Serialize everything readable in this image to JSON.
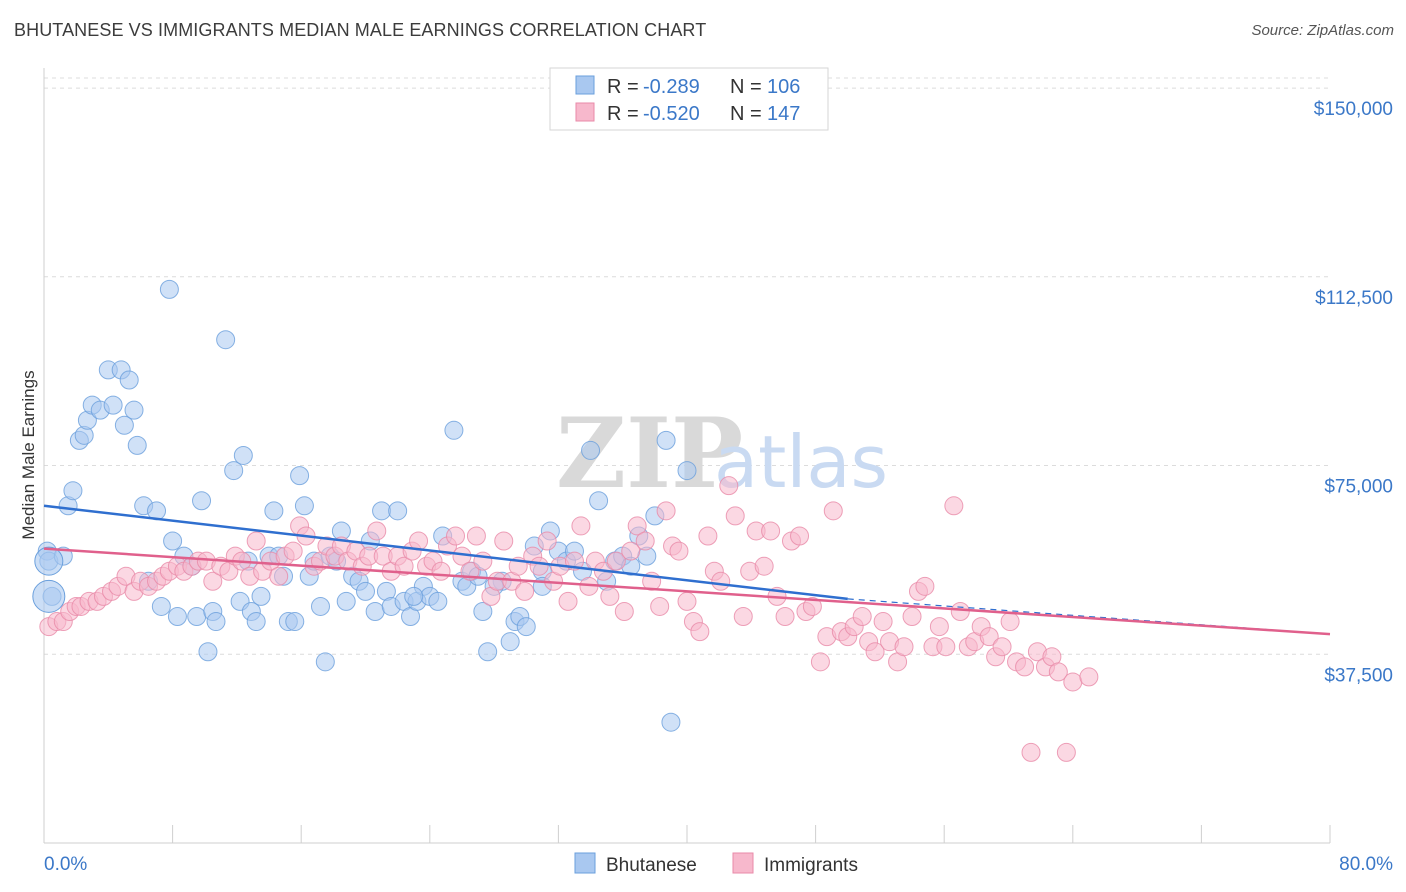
{
  "title": "BHUTANESE VS IMMIGRANTS MEDIAN MALE EARNINGS CORRELATION CHART",
  "source": "Source: ZipAtlas.com",
  "watermark": {
    "zip": "ZIP",
    "atlas": "atlas"
  },
  "legend": {
    "r_label": "R =",
    "n_label": "N =",
    "entries": [
      {
        "r": "-0.289",
        "n": "106",
        "color": "#a9c8f0",
        "stroke": "#6a9fdc"
      },
      {
        "r": "-0.520",
        "n": "147",
        "color": "#f7b8cc",
        "stroke": "#e88aa8"
      }
    ]
  },
  "bottom_legend": [
    {
      "label": "Bhutanese",
      "color": "#a9c8f0",
      "stroke": "#6a9fdc"
    },
    {
      "label": "Immigrants",
      "color": "#f7b8cc",
      "stroke": "#e88aa8"
    }
  ],
  "chart_data": {
    "type": "scatter",
    "title": "BHUTANESE VS IMMIGRANTS MEDIAN MALE EARNINGS CORRELATION CHART",
    "xlabel": "",
    "ylabel": "Median Male Earnings",
    "xlim": [
      0,
      80
    ],
    "ylim": [
      0,
      152000
    ],
    "x_tick_labels": [
      "0.0%",
      "80.0%"
    ],
    "y_ticks": [
      37500,
      75000,
      112500,
      150000
    ],
    "y_tick_labels": [
      "$37,500",
      "$75,000",
      "$112,500",
      "$150,000"
    ],
    "grid": true,
    "legend_position": "top-center",
    "series": [
      {
        "name": "Bhutanese",
        "color": "#6a9fdc",
        "fill": "#a9c8f0",
        "trend": {
          "x": [
            0,
            50
          ],
          "y": [
            67000,
            48500
          ],
          "dashed_to": [
            80,
            41500
          ]
        },
        "points": [
          [
            0.2,
            58000
          ],
          [
            0.3,
            56000
          ],
          [
            0.5,
            49000
          ],
          [
            1.2,
            57000
          ],
          [
            1.5,
            67000
          ],
          [
            1.8,
            70000
          ],
          [
            2.2,
            80000
          ],
          [
            2.5,
            81000
          ],
          [
            2.7,
            84000
          ],
          [
            3.0,
            87000
          ],
          [
            3.5,
            86000
          ],
          [
            4.0,
            94000
          ],
          [
            4.3,
            87000
          ],
          [
            4.8,
            94000
          ],
          [
            5.0,
            83000
          ],
          [
            5.3,
            92000
          ],
          [
            5.6,
            86000
          ],
          [
            5.8,
            79000
          ],
          [
            6.2,
            67000
          ],
          [
            6.5,
            52000
          ],
          [
            7.0,
            66000
          ],
          [
            7.3,
            47000
          ],
          [
            7.8,
            110000
          ],
          [
            8.0,
            60000
          ],
          [
            8.3,
            45000
          ],
          [
            8.7,
            57000
          ],
          [
            9.2,
            55000
          ],
          [
            9.5,
            45000
          ],
          [
            9.8,
            68000
          ],
          [
            10.2,
            38000
          ],
          [
            10.5,
            46000
          ],
          [
            10.7,
            44000
          ],
          [
            11.3,
            100000
          ],
          [
            11.8,
            74000
          ],
          [
            12.2,
            48000
          ],
          [
            12.4,
            77000
          ],
          [
            12.7,
            56000
          ],
          [
            12.9,
            46000
          ],
          [
            13.2,
            44000
          ],
          [
            13.5,
            49000
          ],
          [
            14.0,
            57000
          ],
          [
            14.3,
            66000
          ],
          [
            14.6,
            57000
          ],
          [
            14.9,
            53000
          ],
          [
            15.2,
            44000
          ],
          [
            15.6,
            44000
          ],
          [
            15.9,
            73000
          ],
          [
            16.2,
            67000
          ],
          [
            16.5,
            53000
          ],
          [
            16.8,
            56000
          ],
          [
            17.2,
            47000
          ],
          [
            17.5,
            36000
          ],
          [
            17.8,
            57000
          ],
          [
            18.2,
            56000
          ],
          [
            18.5,
            62000
          ],
          [
            18.8,
            48000
          ],
          [
            19.2,
            53000
          ],
          [
            19.6,
            52000
          ],
          [
            20.0,
            50000
          ],
          [
            20.3,
            60000
          ],
          [
            20.6,
            46000
          ],
          [
            21.0,
            66000
          ],
          [
            21.3,
            50000
          ],
          [
            21.6,
            47000
          ],
          [
            22.0,
            66000
          ],
          [
            22.4,
            48000
          ],
          [
            22.8,
            45000
          ],
          [
            23.2,
            48000
          ],
          [
            23.6,
            51000
          ],
          [
            24.0,
            49000
          ],
          [
            24.5,
            48000
          ],
          [
            24.8,
            61000
          ],
          [
            25.5,
            82000
          ],
          [
            26.0,
            52000
          ],
          [
            26.3,
            51000
          ],
          [
            26.6,
            54000
          ],
          [
            27.0,
            53000
          ],
          [
            27.3,
            46000
          ],
          [
            27.6,
            38000
          ],
          [
            28.5,
            52000
          ],
          [
            29.0,
            40000
          ],
          [
            29.3,
            44000
          ],
          [
            29.6,
            45000
          ],
          [
            30.0,
            43000
          ],
          [
            30.5,
            59000
          ],
          [
            31.0,
            54000
          ],
          [
            31.5,
            62000
          ],
          [
            32.0,
            58000
          ],
          [
            32.5,
            56000
          ],
          [
            33.0,
            58000
          ],
          [
            33.5,
            54000
          ],
          [
            34.0,
            78000
          ],
          [
            34.5,
            68000
          ],
          [
            35.0,
            52000
          ],
          [
            35.5,
            56000
          ],
          [
            36.0,
            57000
          ],
          [
            36.5,
            55000
          ],
          [
            37.0,
            61000
          ],
          [
            38.0,
            65000
          ],
          [
            38.7,
            80000
          ],
          [
            39.0,
            24000
          ],
          [
            40.0,
            74000
          ],
          [
            31.0,
            51000
          ],
          [
            37.5,
            57000
          ],
          [
            28.0,
            51000
          ],
          [
            23.0,
            49000
          ]
        ]
      },
      {
        "name": "Immigrants",
        "color": "#e88aa8",
        "fill": "#f7b8cc",
        "trend": {
          "x": [
            0,
            80
          ],
          "y": [
            58500,
            41500
          ]
        },
        "points": [
          [
            0.3,
            43000
          ],
          [
            0.8,
            44000
          ],
          [
            1.2,
            44000
          ],
          [
            1.6,
            46000
          ],
          [
            2.0,
            47000
          ],
          [
            2.3,
            47000
          ],
          [
            2.8,
            48000
          ],
          [
            3.3,
            48000
          ],
          [
            3.7,
            49000
          ],
          [
            4.2,
            50000
          ],
          [
            4.6,
            51000
          ],
          [
            5.1,
            53000
          ],
          [
            5.6,
            50000
          ],
          [
            6.0,
            52000
          ],
          [
            6.5,
            51000
          ],
          [
            7.0,
            52000
          ],
          [
            7.4,
            53000
          ],
          [
            7.8,
            54000
          ],
          [
            8.3,
            55000
          ],
          [
            8.7,
            54000
          ],
          [
            9.2,
            55000
          ],
          [
            9.6,
            56000
          ],
          [
            10.1,
            56000
          ],
          [
            10.5,
            52000
          ],
          [
            11.0,
            55000
          ],
          [
            11.5,
            54000
          ],
          [
            11.9,
            57000
          ],
          [
            12.3,
            56000
          ],
          [
            12.8,
            53000
          ],
          [
            13.2,
            60000
          ],
          [
            13.6,
            54000
          ],
          [
            14.1,
            56000
          ],
          [
            14.6,
            53000
          ],
          [
            15.0,
            57000
          ],
          [
            15.5,
            58000
          ],
          [
            15.9,
            63000
          ],
          [
            16.3,
            61000
          ],
          [
            16.8,
            55000
          ],
          [
            17.2,
            56000
          ],
          [
            17.6,
            59000
          ],
          [
            18.1,
            57000
          ],
          [
            18.5,
            59000
          ],
          [
            18.9,
            56000
          ],
          [
            19.4,
            58000
          ],
          [
            19.8,
            55000
          ],
          [
            20.2,
            57000
          ],
          [
            20.7,
            62000
          ],
          [
            21.1,
            57000
          ],
          [
            21.6,
            54000
          ],
          [
            22.0,
            57000
          ],
          [
            22.4,
            55000
          ],
          [
            22.9,
            58000
          ],
          [
            23.3,
            60000
          ],
          [
            23.8,
            55000
          ],
          [
            24.2,
            56000
          ],
          [
            24.7,
            54000
          ],
          [
            25.1,
            59000
          ],
          [
            25.6,
            61000
          ],
          [
            26.0,
            57000
          ],
          [
            26.5,
            54000
          ],
          [
            26.9,
            61000
          ],
          [
            27.3,
            56000
          ],
          [
            27.8,
            49000
          ],
          [
            28.2,
            52000
          ],
          [
            28.6,
            60000
          ],
          [
            29.1,
            52000
          ],
          [
            29.5,
            55000
          ],
          [
            29.9,
            50000
          ],
          [
            30.4,
            57000
          ],
          [
            30.8,
            55000
          ],
          [
            31.3,
            60000
          ],
          [
            31.7,
            52000
          ],
          [
            32.1,
            55000
          ],
          [
            32.6,
            48000
          ],
          [
            33.0,
            56000
          ],
          [
            33.4,
            63000
          ],
          [
            33.9,
            51000
          ],
          [
            34.3,
            56000
          ],
          [
            34.8,
            54000
          ],
          [
            35.2,
            49000
          ],
          [
            35.6,
            56000
          ],
          [
            36.1,
            46000
          ],
          [
            36.5,
            58000
          ],
          [
            36.9,
            63000
          ],
          [
            37.4,
            60000
          ],
          [
            37.8,
            52000
          ],
          [
            38.3,
            47000
          ],
          [
            38.7,
            66000
          ],
          [
            39.1,
            59000
          ],
          [
            39.5,
            58000
          ],
          [
            40.0,
            48000
          ],
          [
            40.4,
            44000
          ],
          [
            40.8,
            42000
          ],
          [
            41.3,
            61000
          ],
          [
            41.7,
            54000
          ],
          [
            42.1,
            52000
          ],
          [
            42.6,
            71000
          ],
          [
            43.0,
            65000
          ],
          [
            43.5,
            45000
          ],
          [
            43.9,
            54000
          ],
          [
            44.3,
            62000
          ],
          [
            44.8,
            55000
          ],
          [
            45.2,
            62000
          ],
          [
            45.6,
            49000
          ],
          [
            46.1,
            45000
          ],
          [
            46.5,
            60000
          ],
          [
            47.0,
            61000
          ],
          [
            47.4,
            46000
          ],
          [
            47.8,
            47000
          ],
          [
            48.3,
            36000
          ],
          [
            48.7,
            41000
          ],
          [
            49.1,
            66000
          ],
          [
            49.6,
            42000
          ],
          [
            50.0,
            41000
          ],
          [
            50.4,
            43000
          ],
          [
            50.9,
            45000
          ],
          [
            51.3,
            40000
          ],
          [
            51.7,
            38000
          ],
          [
            52.2,
            44000
          ],
          [
            52.6,
            40000
          ],
          [
            53.1,
            36000
          ],
          [
            53.5,
            39000
          ],
          [
            54.0,
            45000
          ],
          [
            54.4,
            50000
          ],
          [
            54.8,
            51000
          ],
          [
            55.3,
            39000
          ],
          [
            55.7,
            43000
          ],
          [
            56.1,
            39000
          ],
          [
            56.6,
            67000
          ],
          [
            57.0,
            46000
          ],
          [
            57.5,
            39000
          ],
          [
            57.9,
            40000
          ],
          [
            58.3,
            43000
          ],
          [
            58.8,
            41000
          ],
          [
            59.2,
            37000
          ],
          [
            59.6,
            39000
          ],
          [
            60.1,
            44000
          ],
          [
            60.5,
            36000
          ],
          [
            61.0,
            35000
          ],
          [
            61.4,
            18000
          ],
          [
            61.8,
            38000
          ],
          [
            62.3,
            35000
          ],
          [
            62.7,
            37000
          ],
          [
            63.1,
            34000
          ],
          [
            63.6,
            18000
          ],
          [
            64.0,
            32000
          ],
          [
            65.0,
            33000
          ]
        ]
      }
    ]
  }
}
